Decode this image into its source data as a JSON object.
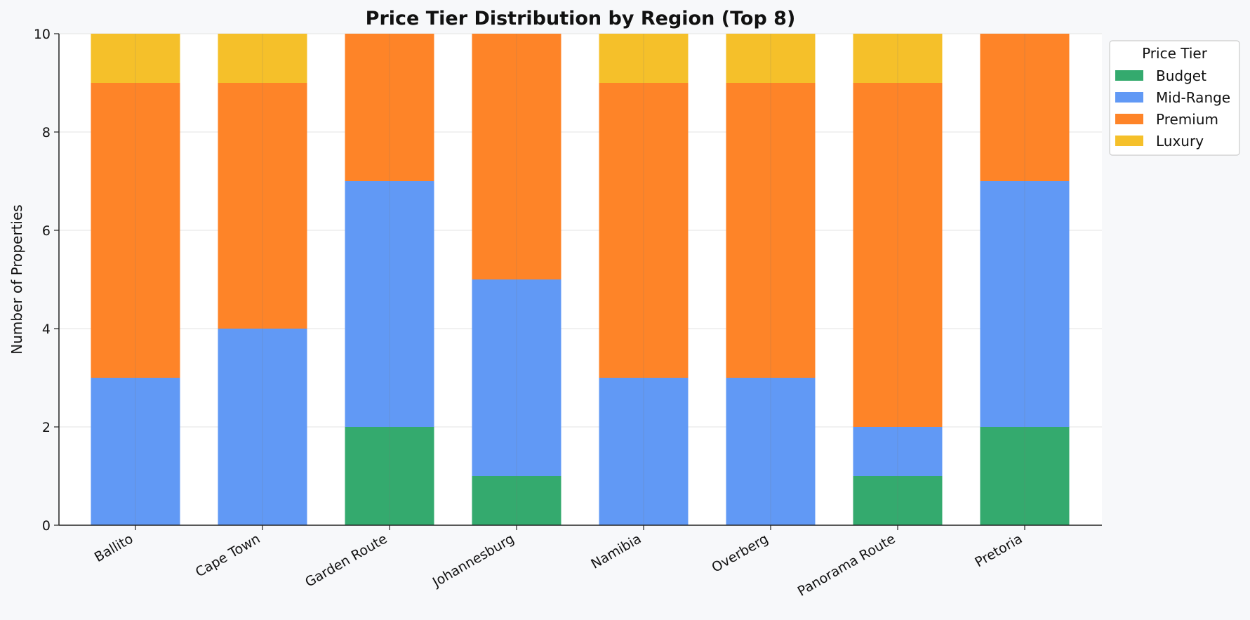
{
  "chart_data": {
    "type": "bar",
    "stacked": true,
    "title": "Price Tier Distribution by Region (Top 8)",
    "xlabel": "",
    "ylabel": "Number of Properties",
    "ylim": [
      0,
      10
    ],
    "yticks": [
      0,
      2,
      4,
      6,
      8,
      10
    ],
    "grid": true,
    "legend": {
      "title": "Price Tier",
      "placement": "upper-right-outside"
    },
    "categories": [
      "Ballito",
      "Cape Town",
      "Garden Route",
      "Johannesburg",
      "Namibia",
      "Overberg",
      "Panorama Route",
      "Pretoria"
    ],
    "series": [
      {
        "name": "Budget",
        "color": "#34aa6e",
        "values": [
          0,
          0,
          2,
          1,
          0,
          0,
          1,
          2
        ]
      },
      {
        "name": "Mid-Range",
        "color": "#6199f5",
        "values": [
          3,
          4,
          5,
          4,
          3,
          3,
          1,
          5
        ]
      },
      {
        "name": "Premium",
        "color": "#fe8428",
        "values": [
          6,
          5,
          3,
          5,
          6,
          6,
          7,
          3
        ]
      },
      {
        "name": "Luxury",
        "color": "#f5c02a",
        "values": [
          1,
          1,
          0,
          0,
          1,
          1,
          1,
          0
        ]
      }
    ]
  }
}
